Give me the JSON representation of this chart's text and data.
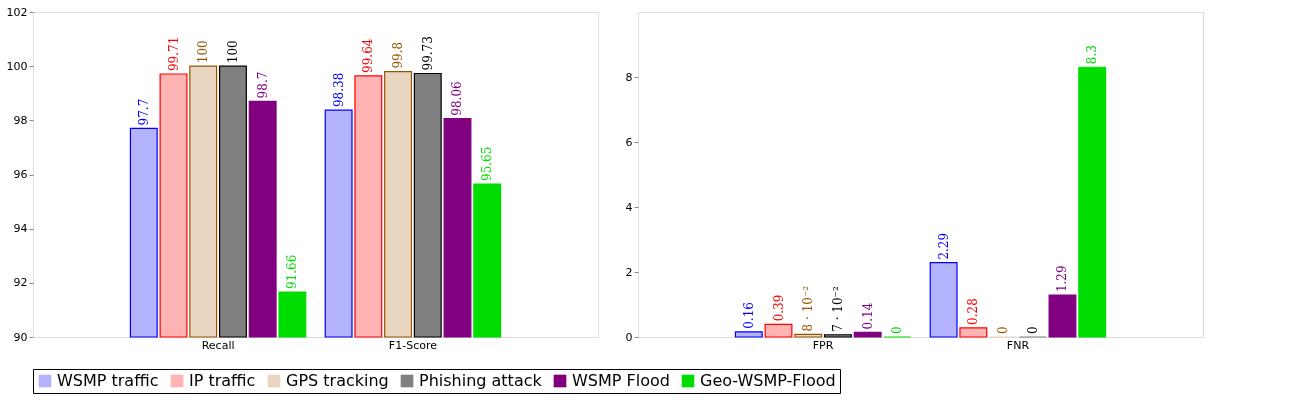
{
  "chart_data": [
    {
      "type": "bar",
      "categories": [
        "Recall",
        "F1-Score"
      ],
      "ylim": [
        90,
        102
      ],
      "yticks": [
        90,
        92,
        94,
        96,
        98,
        100,
        102
      ],
      "grid": false,
      "legend": "bottom",
      "series": [
        {
          "name": "WSMP traffic",
          "color": "#b3b3ff",
          "values": [
            97.7,
            98.38
          ],
          "value_labels": [
            "97.7",
            "98.38"
          ]
        },
        {
          "name": "IP traffic",
          "color": "#ffb3b3",
          "values": [
            99.71,
            99.64
          ],
          "value_labels": [
            "99.71",
            "99.64"
          ]
        },
        {
          "name": "GPS tracking",
          "color": "#e8d6c0",
          "values": [
            100,
            99.8
          ],
          "value_labels": [
            "100",
            "99.8"
          ]
        },
        {
          "name": "Phishing attack",
          "color": "#808080",
          "values": [
            100,
            99.73
          ],
          "value_labels": [
            "100",
            "99.73"
          ]
        },
        {
          "name": "WSMP Flood",
          "color": "#800080",
          "values": [
            98.7,
            98.06
          ],
          "value_labels": [
            "98.7",
            "98.06"
          ]
        },
        {
          "name": "Geo-WSMP-Flood",
          "color": "#00dd00",
          "values": [
            91.66,
            95.65
          ],
          "value_labels": [
            "91.66",
            "95.65"
          ]
        }
      ]
    },
    {
      "type": "bar",
      "categories": [
        "FPR",
        "FNR"
      ],
      "ylim": [
        0,
        10
      ],
      "yticks": [
        0,
        2,
        4,
        6,
        8
      ],
      "grid": false,
      "legend": "bottom",
      "series": [
        {
          "name": "WSMP traffic",
          "color": "#b3b3ff",
          "values": [
            0.16,
            2.29
          ],
          "value_labels": [
            "0.16",
            "2.29"
          ]
        },
        {
          "name": "IP traffic",
          "color": "#ffb3b3",
          "values": [
            0.39,
            0.28
          ],
          "value_labels": [
            "0.39",
            "0.28"
          ]
        },
        {
          "name": "GPS tracking",
          "color": "#e8d6c0",
          "values": [
            0.08,
            0
          ],
          "value_labels": [
            "8 · 10⁻²",
            "0"
          ]
        },
        {
          "name": "Phishing attack",
          "color": "#808080",
          "values": [
            0.07,
            0
          ],
          "value_labels": [
            "7 · 10⁻²",
            "0"
          ]
        },
        {
          "name": "WSMP Flood",
          "color": "#800080",
          "values": [
            0.14,
            1.29
          ],
          "value_labels": [
            "0.14",
            "1.29"
          ]
        },
        {
          "name": "Geo-WSMP-Flood",
          "color": "#00dd00",
          "values": [
            0,
            8.3
          ],
          "value_labels": [
            "0",
            "8.3"
          ]
        }
      ]
    }
  ]
}
